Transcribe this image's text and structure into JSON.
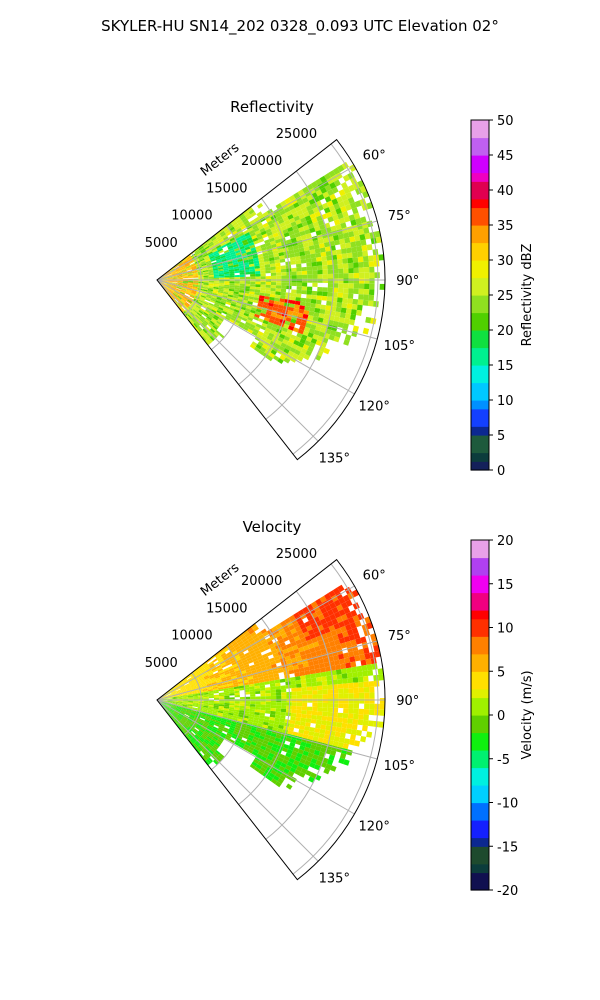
{
  "figure_title": "SKYLER-HU  SN14_202  0328_0.093 UTC Elevation 02°",
  "chart_data": [
    {
      "type": "heatmap",
      "projection": "polar-sector",
      "title": "Reflectivity",
      "range_axis_label": "Meters",
      "range_ticks": [
        "5000",
        "10000",
        "15000",
        "20000",
        "25000"
      ],
      "range_tick_values": [
        5000,
        10000,
        15000,
        20000,
        25000
      ],
      "range_max": 25800,
      "azimuth_range_deg": [
        52,
        142
      ],
      "azimuth_ticks": [
        "60°",
        "75°",
        "90°",
        "105°",
        "120°",
        "135°"
      ],
      "azimuth_tick_values": [
        60,
        75,
        90,
        105,
        120,
        135
      ],
      "grid": true,
      "colorbar": {
        "label": "Reflectivity dBZ",
        "min": 0,
        "max": 50,
        "ticks": [
          "0",
          "5",
          "10",
          "15",
          "20",
          "25",
          "30",
          "35",
          "40",
          "45",
          "50"
        ],
        "tick_values": [
          0,
          5,
          10,
          15,
          20,
          25,
          30,
          35,
          40,
          45,
          50
        ]
      }
    },
    {
      "type": "heatmap",
      "projection": "polar-sector",
      "title": "Velocity",
      "range_axis_label": "Meters",
      "range_ticks": [
        "5000",
        "10000",
        "15000",
        "20000",
        "25000"
      ],
      "range_tick_values": [
        5000,
        10000,
        15000,
        20000,
        25000
      ],
      "range_max": 25800,
      "azimuth_range_deg": [
        52,
        142
      ],
      "azimuth_ticks": [
        "60°",
        "75°",
        "90°",
        "105°",
        "120°",
        "135°"
      ],
      "azimuth_tick_values": [
        60,
        75,
        90,
        105,
        120,
        135
      ],
      "grid": true,
      "colorbar": {
        "label": "Velocity (m/s)",
        "min": -20,
        "max": 20,
        "ticks": [
          "-20",
          "-15",
          "-10",
          "-5",
          "0",
          "5",
          "10",
          "15",
          "20"
        ],
        "tick_values": [
          -20,
          -15,
          -10,
          -5,
          0,
          5,
          10,
          15,
          20
        ]
      }
    }
  ]
}
